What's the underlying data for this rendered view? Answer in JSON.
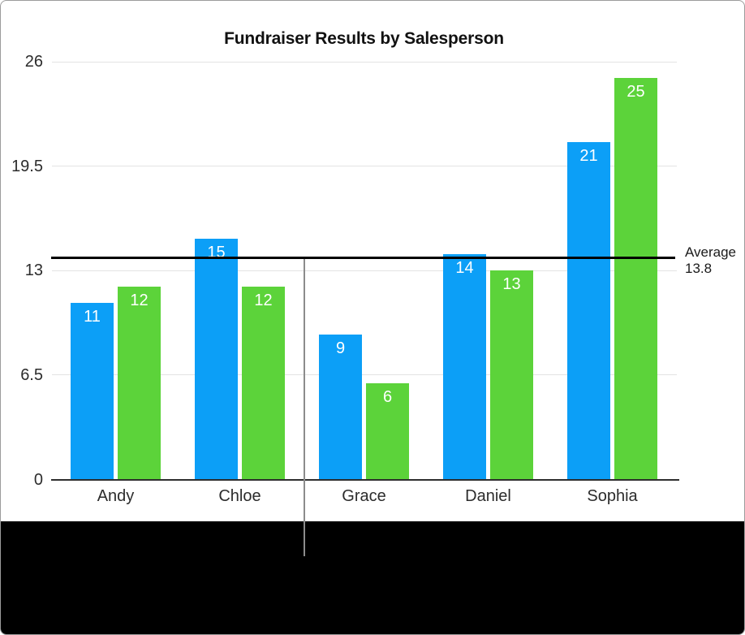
{
  "frame": {
    "background": "#ffffff",
    "bottom_band_color": "#000000",
    "border_color": "#9b9b9b"
  },
  "chart_data": {
    "type": "bar",
    "title": "Fundraiser Results by Salesperson",
    "categories": [
      "Andy",
      "Chloe",
      "Grace",
      "Daniel",
      "Sophia"
    ],
    "series": [
      {
        "name": "blue-series",
        "color": "#0C9FF7",
        "values": [
          11,
          15,
          9,
          14,
          21
        ]
      },
      {
        "name": "green-series",
        "color": "#5CD33A",
        "values": [
          12,
          12,
          6,
          13,
          25
        ]
      }
    ],
    "value_labels_shown": true,
    "value_label_color": "#ffffff",
    "ylim": [
      0,
      26
    ],
    "y_ticks": [
      {
        "value": 26,
        "label": "26"
      },
      {
        "value": 19.5,
        "label": "19.5"
      },
      {
        "value": 13,
        "label": "13"
      },
      {
        "value": 6.5,
        "label": "6.5"
      },
      {
        "value": 0,
        "label": "0"
      }
    ],
    "grid": true,
    "legend": "none",
    "reference_line": {
      "type": "average",
      "value": 13.8,
      "label": "Average",
      "value_text": "13.8",
      "color": "#000000"
    }
  }
}
